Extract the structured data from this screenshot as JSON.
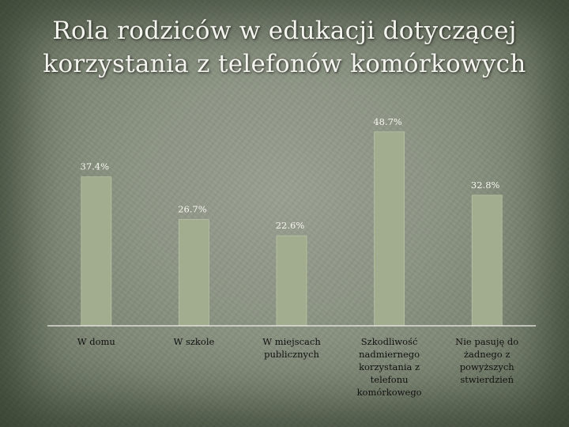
{
  "title_lines": [
    "Rola rodziców w edukacji dotyczącej",
    "korzystania z telefonów komórkowych"
  ],
  "chart_data": {
    "type": "bar",
    "categories": [
      [
        "W domu"
      ],
      [
        "W szkole"
      ],
      [
        "W miejscach",
        "publicznych"
      ],
      [
        "Szkodliwość",
        "nadmiernego",
        "korzystania z",
        "telefonu",
        "komórkowego"
      ],
      [
        "Nie pasuję do",
        "żadnego z",
        "powyższych",
        "stwierdzień"
      ]
    ],
    "series": [
      {
        "values": [
          37.4,
          26.7,
          22.6,
          48.7,
          32.8
        ],
        "labels": [
          "37.4%",
          "26.7%",
          "22.6%",
          "48.7%",
          "32.8%"
        ]
      }
    ],
    "ylim": [
      0,
      56
    ],
    "colors": {
      "bar": "#a1ad8e",
      "bar_stroke": "#b7c2a4",
      "axis": "#f0f0ea"
    },
    "grid": false,
    "legend": "none"
  }
}
